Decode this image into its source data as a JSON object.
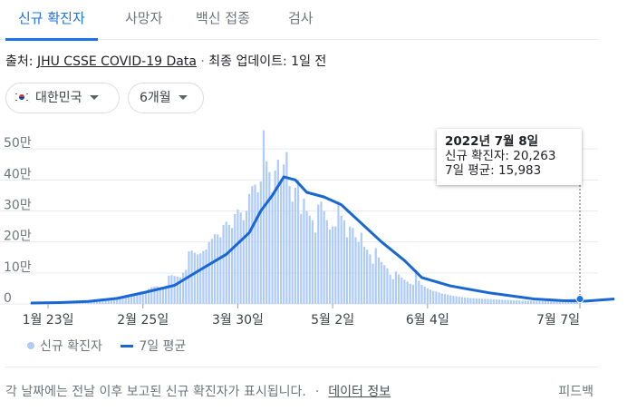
{
  "tabs": [
    {
      "label": "신규 확진자",
      "active": true
    },
    {
      "label": "사망자",
      "active": false
    },
    {
      "label": "백신 접종",
      "active": false
    },
    {
      "label": "검사",
      "active": false
    }
  ],
  "source": {
    "prefix": "출처:",
    "link": "JHU CSSE COVID-19 Data",
    "separator": "·",
    "updated": "최종 업데이트: 1일 전"
  },
  "filters": {
    "country": "대한민국",
    "period": "6개월"
  },
  "tooltip": {
    "date": "2022년 7월 8일",
    "cases_line": "신규 확진자: 20,263",
    "avg_line": "7일 평균: 15,983"
  },
  "legend": {
    "bars": "신규 확진자",
    "line": "7일 평균"
  },
  "footer": {
    "note": "각 날짜에는 전날 이후 보고된 신규 확진자가 표시됩니다.",
    "bullet": "·",
    "data_info": "데이터 정보",
    "feedback": "피드백"
  },
  "colors": {
    "accent": "#1a73e8",
    "bar": "#aecbfa",
    "avg_line": "#1967d2",
    "grid": "#e8eaed"
  },
  "chart_data": {
    "type": "bar",
    "x_ticks": [
      "1월 23일",
      "2월 25일",
      "3월 30일",
      "5월 2일",
      "6월 4일",
      "7월 7일"
    ],
    "y_ticks": [
      "0",
      "10만",
      "20만",
      "30만",
      "40만",
      "50만"
    ],
    "ylim": [
      0,
      600000
    ],
    "selected_date": "2022년 7월 8일",
    "series": [
      {
        "name": "신규 확진자",
        "kind": "bar",
        "values": [
          3000,
          2800,
          3200,
          3500,
          3300,
          3100,
          2900,
          3600,
          4000,
          4200,
          4400,
          4100,
          3900,
          4700,
          5000,
          5500,
          6200,
          6900,
          7000,
          6500,
          7600,
          8100,
          7600,
          8500,
          10000,
          11500,
          14000,
          13000,
          12500,
          16000,
          18000,
          18000,
          17000,
          22000,
          24000,
          27000,
          27000,
          36000,
          39000,
          38000,
          35000,
          49000,
          54000,
          57000,
          57000,
          54000,
          53000,
          50000,
          91000,
          93000,
          90000,
          88000,
          86000,
          101000,
          110000,
          170000,
          172000,
          165000,
          160000,
          163000,
          171000,
          176000,
          200000,
          210000,
          225000,
          224000,
          215000,
          255000,
          265000,
          255000,
          245000,
          290000,
          305000,
          295000,
          270000,
          300000,
          355000,
          380000,
          385000,
          360000,
          395000,
          560000,
          460000,
          425000,
          360000,
          430000,
          465000,
          395000,
          450000,
          490000,
          380000,
          330000,
          375000,
          400000,
          290000,
          340000,
          300000,
          285000,
          270000,
          230000,
          320000,
          330000,
          300000,
          270000,
          240000,
          250000,
          250000,
          330000,
          285000,
          270000,
          215000,
          250000,
          245000,
          215000,
          200000,
          230000,
          185000,
          175000,
          160000,
          130000,
          180000,
          150000,
          135000,
          125000,
          115000,
          95000,
          80000,
          105000,
          95000,
          85000,
          78000,
          72000,
          65000,
          62000,
          110000,
          75000,
          62000,
          56000,
          50000,
          46000,
          42000,
          40000,
          37000,
          34000,
          32000,
          30000,
          28000,
          26000,
          25000,
          23000,
          22000,
          21000,
          20000,
          19000,
          18500,
          18000,
          17500,
          17000,
          16500,
          16000,
          15500,
          15000,
          14500,
          14000,
          13600,
          13200,
          12800,
          12400,
          12000,
          11600,
          11200,
          10800,
          10400,
          10000,
          9800,
          9600,
          9400,
          9200,
          9100,
          9000,
          9100,
          9300,
          9700,
          10200,
          11000,
          12000,
          13500,
          15000,
          16500,
          18000,
          19000,
          20263
        ]
      },
      {
        "name": "7일 평균",
        "kind": "line",
        "x_index": [
          0,
          10,
          20,
          30,
          40,
          50,
          58,
          68,
          76,
          80,
          84,
          88,
          92,
          96,
          102,
          108,
          115,
          122,
          130,
          136,
          146,
          160,
          175,
          185,
          193,
          203
        ],
        "values": [
          3000,
          4500,
          8000,
          18000,
          38000,
          60000,
          105000,
          160000,
          230000,
          300000,
          350000,
          410000,
          400000,
          360000,
          345000,
          320000,
          260000,
          200000,
          140000,
          85000,
          58000,
          35000,
          16000,
          10500,
          9300,
          15983
        ]
      }
    ]
  }
}
